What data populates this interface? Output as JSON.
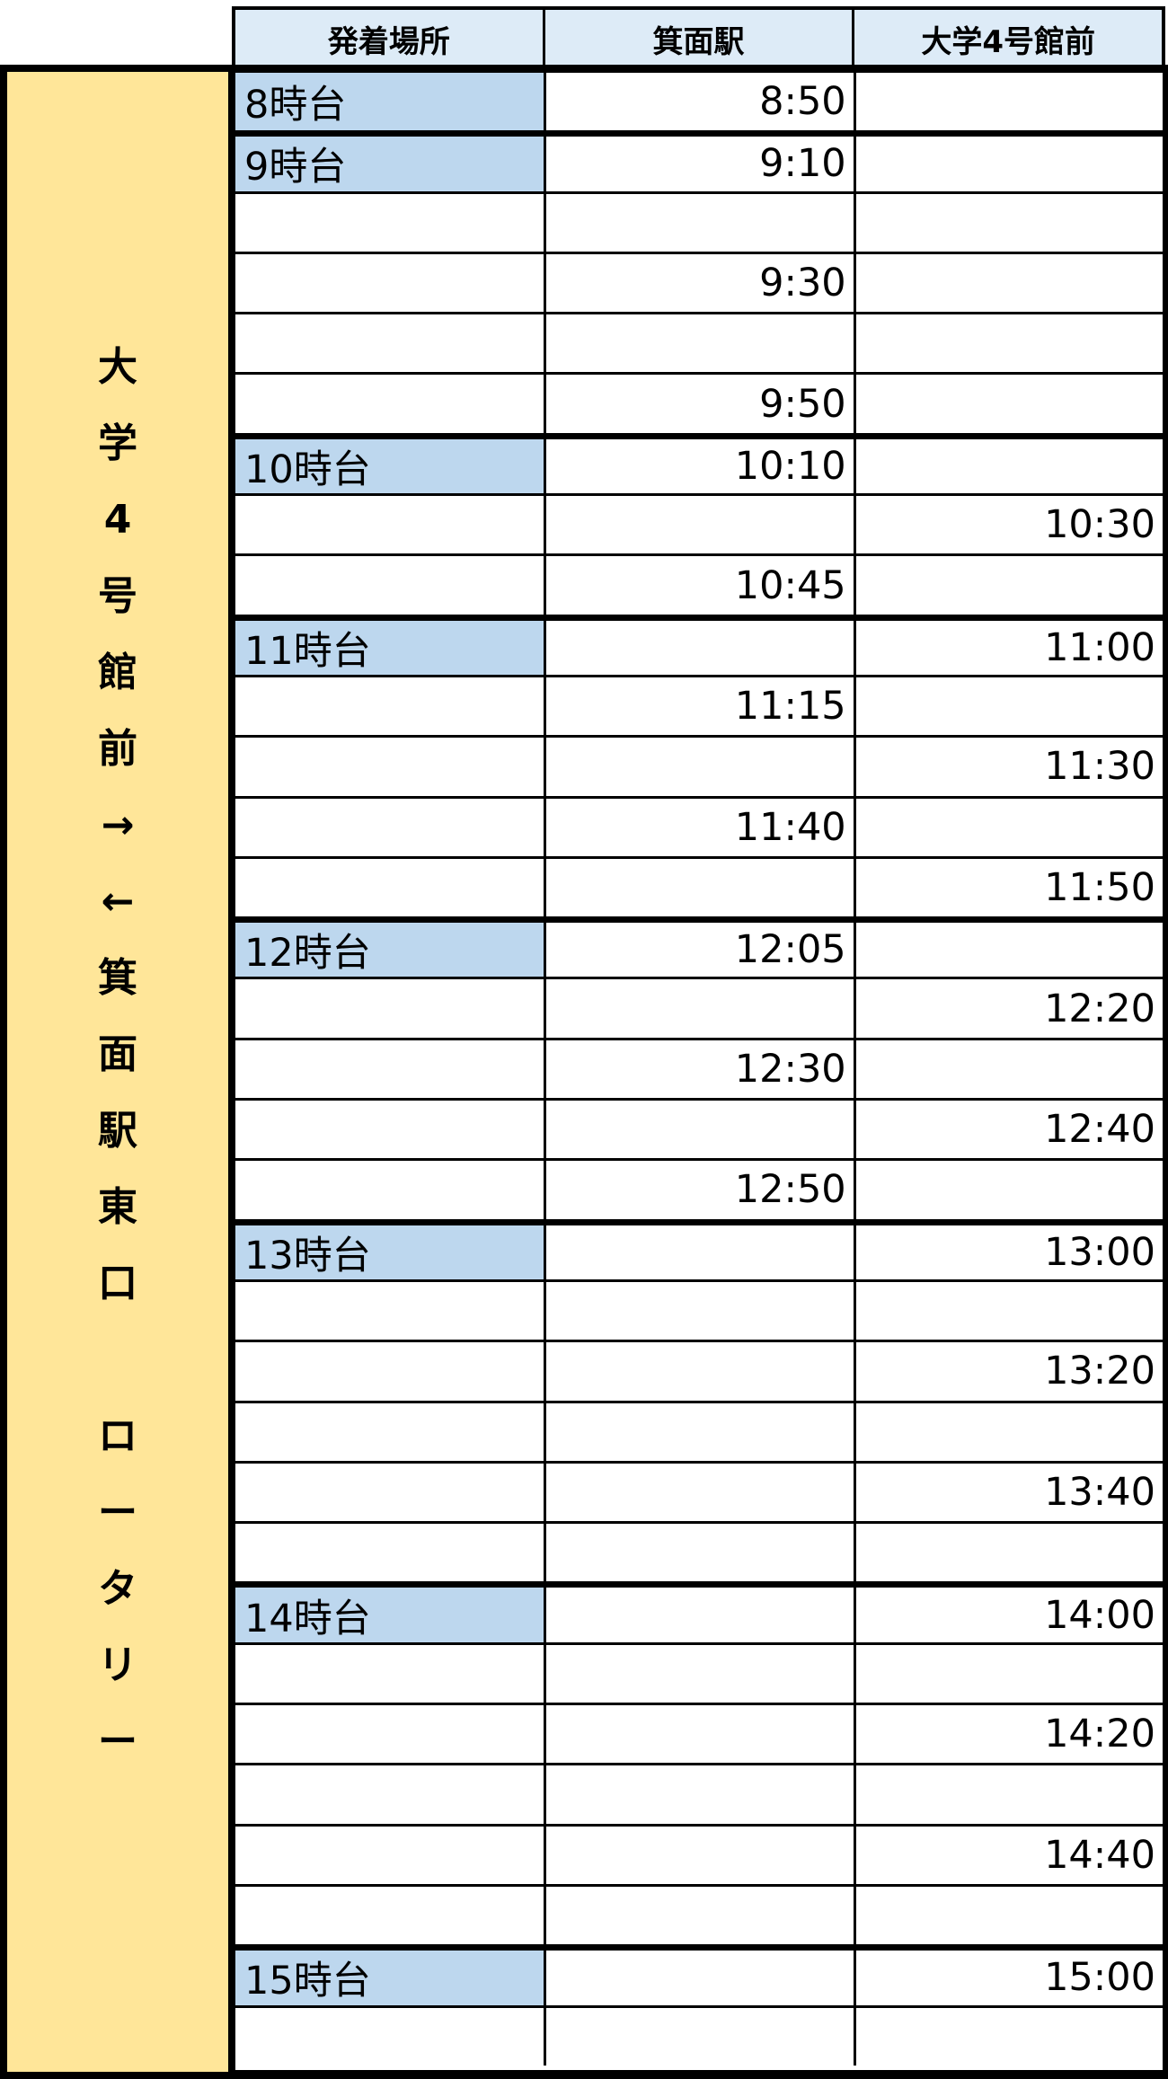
{
  "colors": {
    "header_bg": "#DDEBF7",
    "hour_bg": "#BDD7EE",
    "side_bg": "#FFE699"
  },
  "headers": [
    "発着場所",
    "箕面駅",
    "大学4号館前"
  ],
  "side_label": [
    "大",
    "学",
    "4",
    "号",
    "館",
    "前",
    "→",
    "←",
    "箕",
    "面",
    "駅",
    "東",
    "口",
    "",
    "ロ",
    "ー",
    "タ",
    "リ",
    "ー"
  ],
  "rows": [
    {
      "hour": "8時台",
      "mino": "8:50",
      "univ": ""
    },
    {
      "hour": "9時台",
      "mino": "9:10",
      "univ": ""
    },
    {
      "hour": "",
      "mino": "",
      "univ": ""
    },
    {
      "hour": "",
      "mino": "9:30",
      "univ": ""
    },
    {
      "hour": "",
      "mino": "",
      "univ": ""
    },
    {
      "hour": "",
      "mino": "9:50",
      "univ": ""
    },
    {
      "hour": "10時台",
      "mino": "10:10",
      "univ": ""
    },
    {
      "hour": "",
      "mino": "",
      "univ": "10:30"
    },
    {
      "hour": "",
      "mino": "10:45",
      "univ": ""
    },
    {
      "hour": "11時台",
      "mino": "",
      "univ": "11:00"
    },
    {
      "hour": "",
      "mino": "11:15",
      "univ": ""
    },
    {
      "hour": "",
      "mino": "",
      "univ": "11:30"
    },
    {
      "hour": "",
      "mino": "11:40",
      "univ": ""
    },
    {
      "hour": "",
      "mino": "",
      "univ": "11:50"
    },
    {
      "hour": "12時台",
      "mino": "12:05",
      "univ": ""
    },
    {
      "hour": "",
      "mino": "",
      "univ": "12:20"
    },
    {
      "hour": "",
      "mino": "12:30",
      "univ": ""
    },
    {
      "hour": "",
      "mino": "",
      "univ": "12:40"
    },
    {
      "hour": "",
      "mino": "12:50",
      "univ": ""
    },
    {
      "hour": "13時台",
      "mino": "",
      "univ": "13:00"
    },
    {
      "hour": "",
      "mino": "",
      "univ": ""
    },
    {
      "hour": "",
      "mino": "",
      "univ": "13:20"
    },
    {
      "hour": "",
      "mino": "",
      "univ": ""
    },
    {
      "hour": "",
      "mino": "",
      "univ": "13:40"
    },
    {
      "hour": "",
      "mino": "",
      "univ": ""
    },
    {
      "hour": "14時台",
      "mino": "",
      "univ": "14:00"
    },
    {
      "hour": "",
      "mino": "",
      "univ": ""
    },
    {
      "hour": "",
      "mino": "",
      "univ": "14:20"
    },
    {
      "hour": "",
      "mino": "",
      "univ": ""
    },
    {
      "hour": "",
      "mino": "",
      "univ": "14:40"
    },
    {
      "hour": "",
      "mino": "",
      "univ": ""
    },
    {
      "hour": "15時台",
      "mino": "",
      "univ": "15:00"
    },
    {
      "hour": "",
      "mino": "",
      "univ": ""
    }
  ]
}
